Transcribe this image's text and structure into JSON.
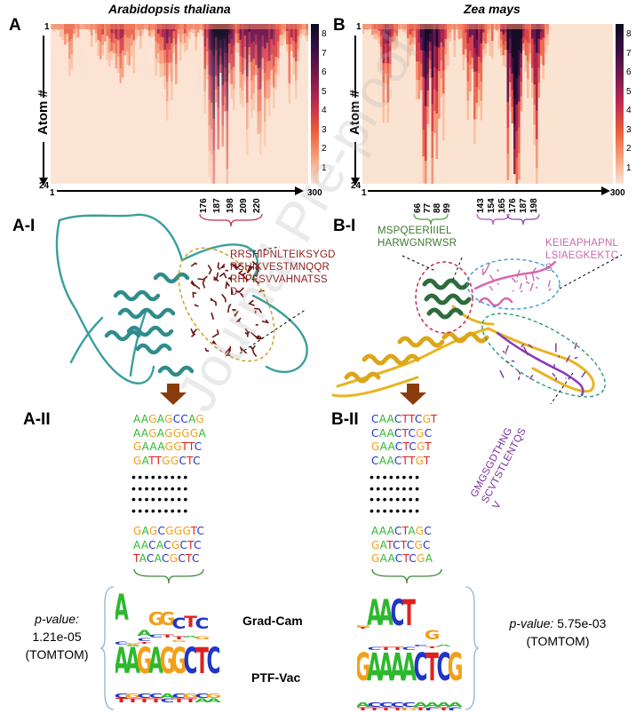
{
  "panels": {
    "a": "A",
    "b": "B",
    "ai": "A-I",
    "bi": "B-I",
    "aii": "A-II",
    "bii": "B-II"
  },
  "species": {
    "a": "Arabidopsis thaliana",
    "b": "Zea mays"
  },
  "axis": {
    "ylabel": "Atom #",
    "y_top": "1",
    "y_bottom": "24",
    "x_left": "1",
    "x_right": "300"
  },
  "colorbar_ticks": [
    "8",
    "7",
    "6",
    "5",
    "4",
    "3",
    "2",
    "1"
  ],
  "a_positions": [
    "176",
    "187",
    "198",
    "209",
    "220"
  ],
  "b_positions_group1": [
    "66",
    "77",
    "88",
    "99"
  ],
  "b_positions_group2": [
    "143",
    "154",
    "165",
    "176",
    "187",
    "198"
  ],
  "peptides": {
    "a": [
      "RRSHIPNLTEIKSYGD",
      "RSHIKVESTMNQQR",
      "RHPFSVVAHNATSS",
      "D"
    ],
    "b_green": [
      "MSPQEERIIIEL",
      "HARWGNRWSR"
    ],
    "b_pink": [
      "KEIEAPHAPNL",
      "LSIAEGKEKTC",
      "S"
    ],
    "b_purple": [
      "GMGSGDTHNG",
      "SCVTSTLENTQS",
      "V"
    ]
  },
  "colors": {
    "A": "#2db82d",
    "C": "#1f35c8",
    "G": "#f2a01a",
    "T": "#e02020",
    "protein_a": "#3a9e9e",
    "motif_a": "#6b1414",
    "protein_b": "#e8b422",
    "pep_green": "#2e6b2e",
    "pep_pink": "#c86aa8",
    "pep_purple": "#7a2e9e",
    "arrow": "#8a3c0c"
  },
  "seqs_a_top": [
    "AAGAGCCAG",
    "AAGAGGGGA",
    "GAAAGGTTC",
    "GATTGGCTC"
  ],
  "seqs_a_bottom": [
    "GAGCGGGTC",
    "AACACGCTC",
    "TACACGCTC"
  ],
  "seqs_b_top": [
    "CAACTTCGT",
    "CAACTCGC",
    "GAACTCGT",
    "CAACTTGT"
  ],
  "seqs_b_bottom": [
    "AAACTAGC",
    "GATCTCGC",
    "GAACTCGA"
  ],
  "motif_labels": {
    "gradcam": "Grad-Cam",
    "ptfvac": "PTF-Vac"
  },
  "pvalues": {
    "a": {
      "label": "p-value:",
      "value": "1.21e-05",
      "tool": "(TOMTOM)"
    },
    "b": {
      "label": "p-value:",
      "value": "5.75e-03",
      "tool": "(TOMTOM)"
    }
  },
  "watermark": "Journal Pre-proof"
}
